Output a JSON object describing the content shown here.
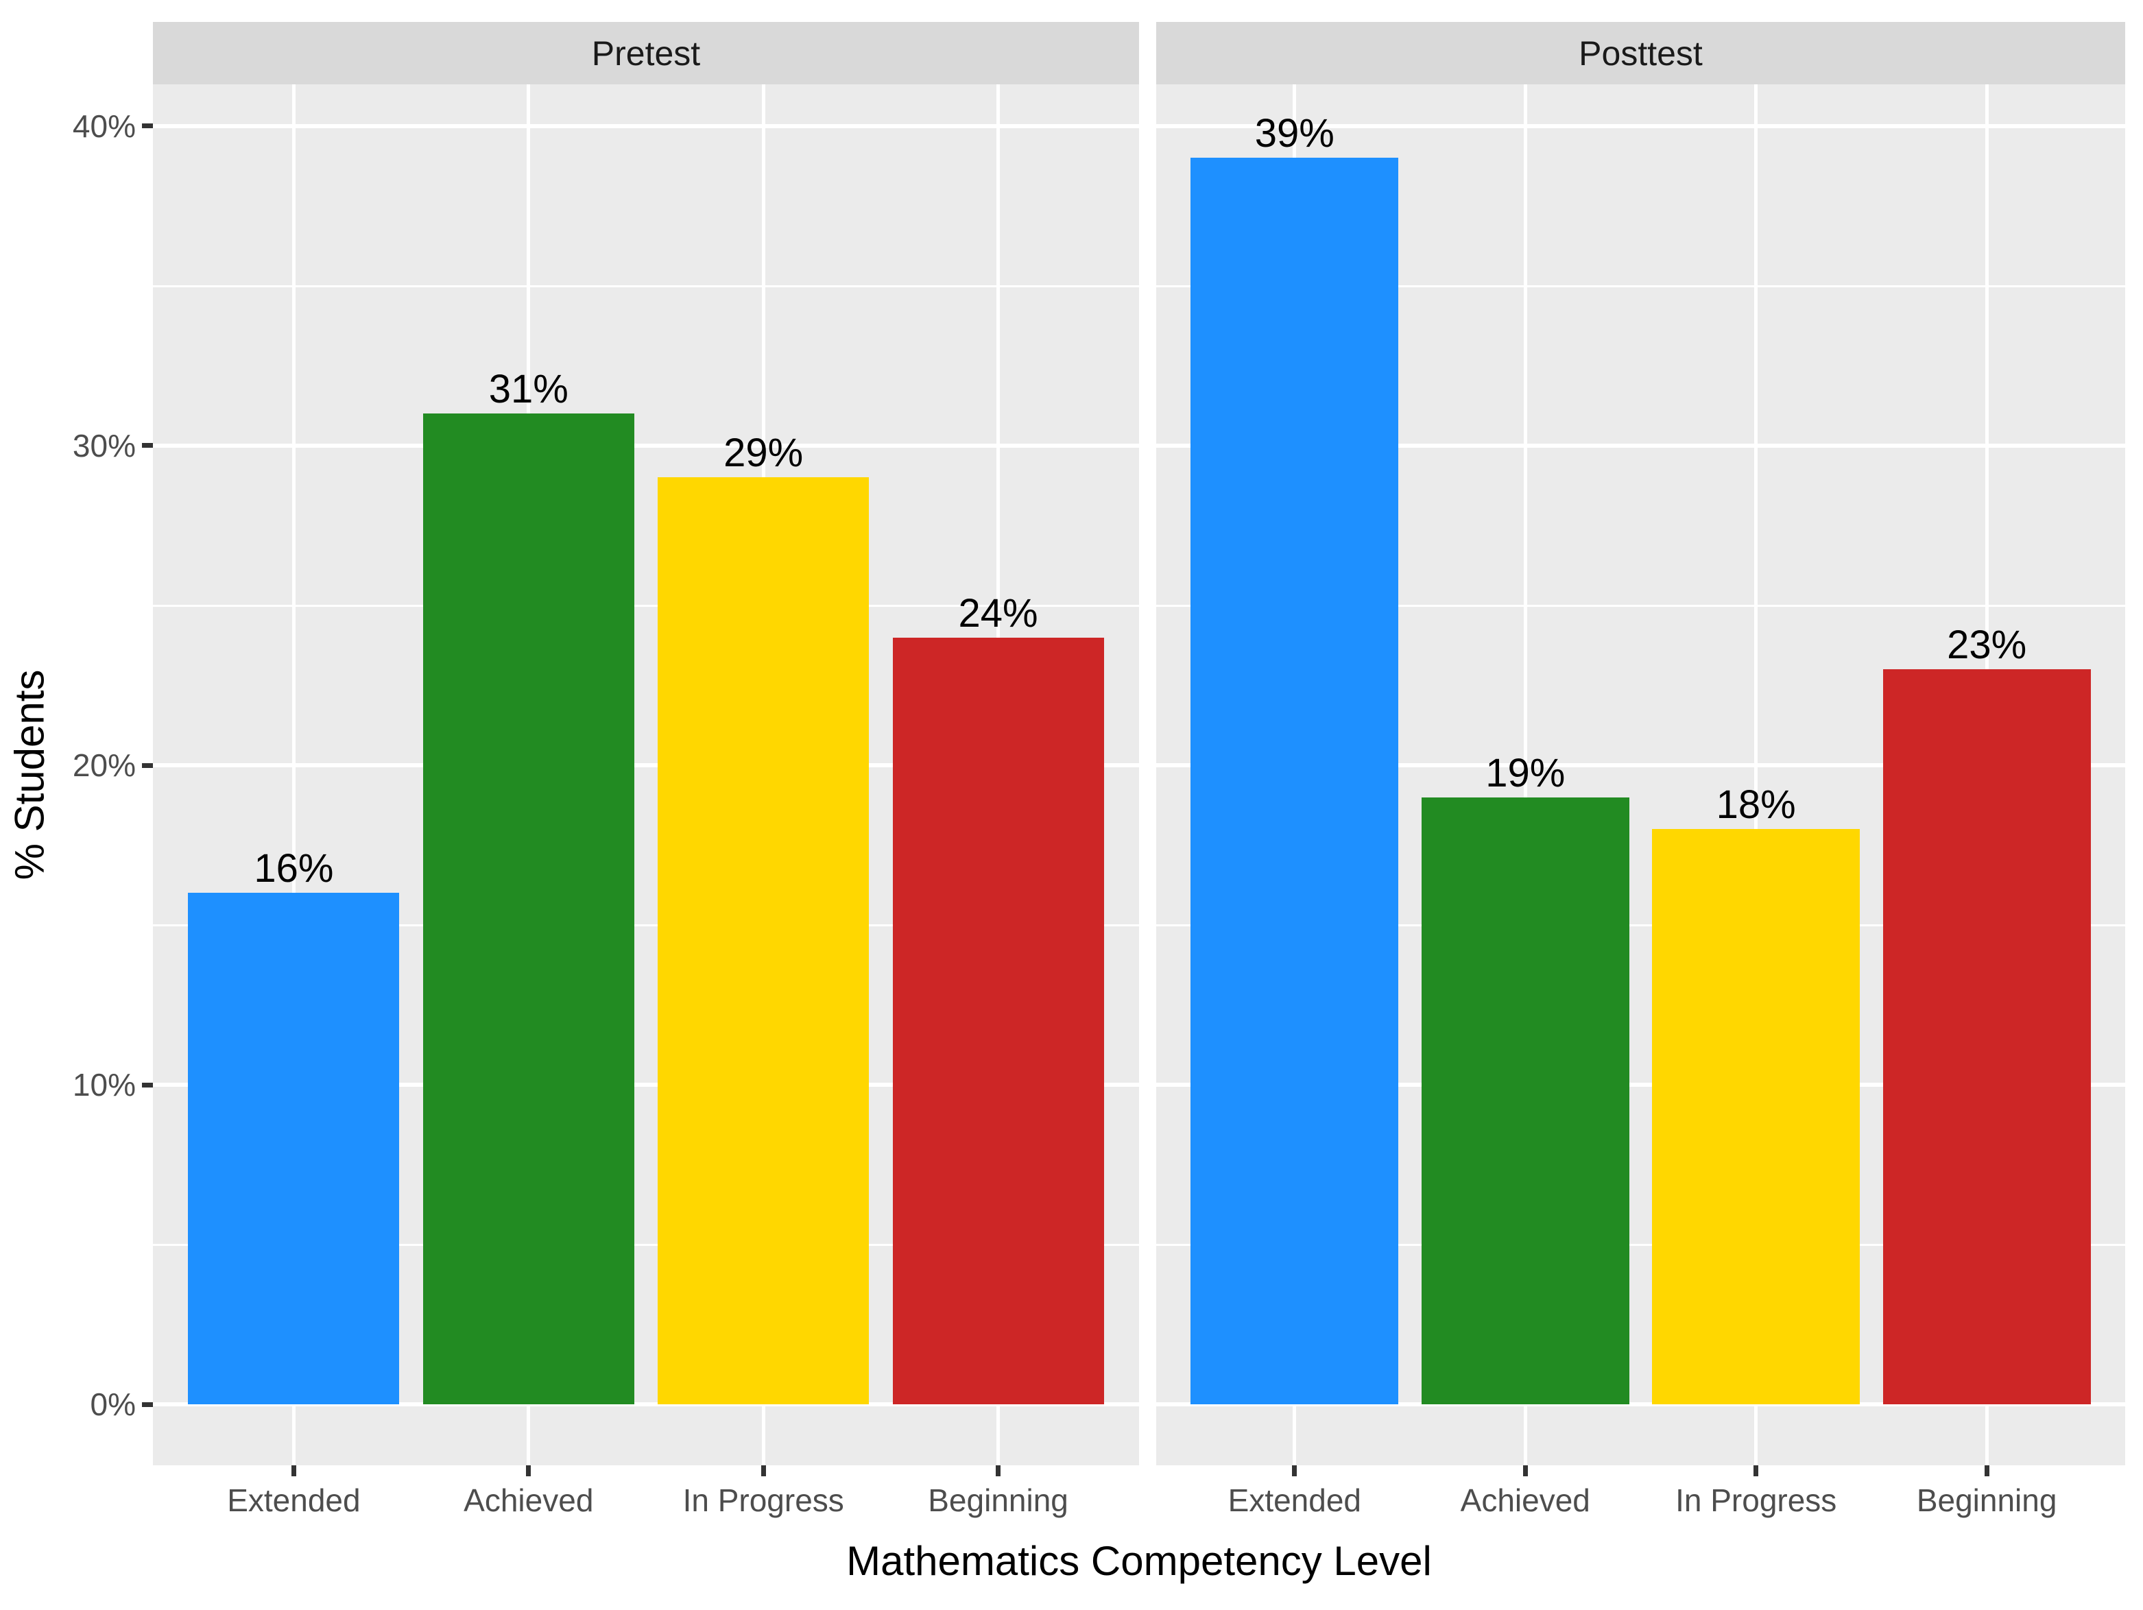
{
  "chart_data": {
    "type": "bar",
    "title": "",
    "facets": [
      "Pretest",
      "Posttest"
    ],
    "categories": [
      "Extended",
      "Achieved",
      "In Progress",
      "Beginning"
    ],
    "series": [
      {
        "name": "Pretest",
        "values": [
          16,
          31,
          29,
          24
        ],
        "bar_labels": [
          "16%",
          "31%",
          "29%",
          "24%"
        ]
      },
      {
        "name": "Posttest",
        "values": [
          39,
          19,
          18,
          23
        ],
        "bar_labels": [
          "39%",
          "19%",
          "18%",
          "23%"
        ]
      }
    ],
    "xlabel": "Mathematics Competency Level",
    "ylabel": "% Students",
    "y_axis": {
      "ticks": [
        {
          "value": 0,
          "label": "0%"
        },
        {
          "value": 10,
          "label": "10%"
        },
        {
          "value": 20,
          "label": "20%"
        },
        {
          "value": 30,
          "label": "30%"
        },
        {
          "value": 40,
          "label": "40%"
        }
      ],
      "minor_gridlines": [
        5,
        15,
        25,
        35
      ],
      "range": [
        -1.9,
        41.3
      ]
    },
    "bar_colors_by_category": [
      "#1E90FF",
      "#228B22",
      "#FFD700",
      "#CD2626"
    ],
    "legend_position": "none",
    "grid": {
      "major": true,
      "minor": true,
      "color": "#FFFFFF"
    }
  },
  "theme": {
    "background": "#FFFFFF",
    "panel_background": "#EBEBEB",
    "strip_background": "#D9D9D9",
    "gridline_color": "#FFFFFF",
    "tick_label_color": "#4D4D4D",
    "tick_mark_color": "#333333",
    "axis_title_color": "#000000",
    "strip_text_color": "#1A1A1A",
    "bar_label_color": "#000000"
  }
}
